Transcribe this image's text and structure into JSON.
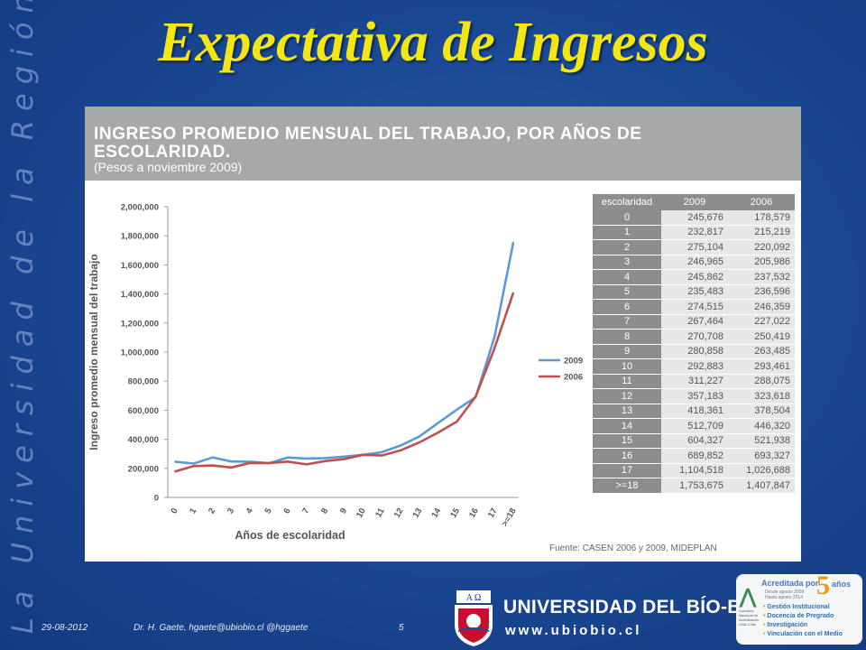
{
  "side_text": "La Universidad de la Región del Bío-Bío",
  "title": "Expectativa de Ingresos",
  "panel": {
    "heading_line1": "INGRESO PROMEDIO MENSUAL DEL TRABAJO, POR AÑOS DE",
    "heading_line2": "ESCOLARIDAD.",
    "subheading": "(Pesos a noviembre 2009)"
  },
  "chart_data": {
    "type": "line",
    "title": "INGRESO PROMEDIO MENSUAL DEL TRABAJO, POR AÑOS DE ESCOLARIDAD.",
    "subtitle": "(Pesos a noviembre 2009)",
    "xlabel": "Años de escolaridad",
    "ylabel": "Ingreso promedio mensual del trabajo",
    "categories": [
      "0",
      "1",
      "2",
      "3",
      "4",
      "5",
      "6",
      "7",
      "8",
      "9",
      "10",
      "11",
      "12",
      "13",
      "14",
      "15",
      "16",
      "17",
      ">=18"
    ],
    "ylim": [
      0,
      2000000
    ],
    "yticks": [
      "0",
      "200,000",
      "400,000",
      "600,000",
      "800,000",
      "1,000,000",
      "1,200,000",
      "1,400,000",
      "1,600,000",
      "1,800,000",
      "2,000,000"
    ],
    "grid": false,
    "legend_position": "right",
    "series": [
      {
        "name": "2009",
        "color": "#5b9bd5",
        "values": [
          245676,
          232817,
          275104,
          246965,
          245862,
          235483,
          274515,
          267464,
          270708,
          280858,
          292883,
          311227,
          357183,
          418361,
          512709,
          604327,
          689852,
          1104518,
          1753675
        ]
      },
      {
        "name": "2006",
        "color": "#c0504d",
        "values": [
          178579,
          215219,
          220092,
          205986,
          237532,
          236596,
          246359,
          227022,
          250419,
          263485,
          293461,
          288075,
          323618,
          378504,
          446320,
          521938,
          693327,
          1026688,
          1407847
        ]
      }
    ],
    "table": {
      "headers": [
        "escolaridad",
        "2009",
        "2006"
      ],
      "rows": [
        [
          "0",
          "245,676",
          "178,579"
        ],
        [
          "1",
          "232,817",
          "215,219"
        ],
        [
          "2",
          "275,104",
          "220,092"
        ],
        [
          "3",
          "246,965",
          "205,986"
        ],
        [
          "4",
          "245,862",
          "237,532"
        ],
        [
          "5",
          "235,483",
          "236,596"
        ],
        [
          "6",
          "274,515",
          "246,359"
        ],
        [
          "7",
          "267,464",
          "227,022"
        ],
        [
          "8",
          "270,708",
          "250,419"
        ],
        [
          "9",
          "280,858",
          "263,485"
        ],
        [
          "10",
          "292,883",
          "293,461"
        ],
        [
          "11",
          "311,227",
          "288,075"
        ],
        [
          "12",
          "357,183",
          "323,618"
        ],
        [
          "13",
          "418,361",
          "378,504"
        ],
        [
          "14",
          "512,709",
          "446,320"
        ],
        [
          "15",
          "604,327",
          "521,938"
        ],
        [
          "16",
          "689,852",
          "693,327"
        ],
        [
          "17",
          "1,104,518",
          "1,026,688"
        ],
        [
          ">=18",
          "1,753,675",
          "1,407,847"
        ]
      ]
    },
    "source": "Fuente: CASEN 2006 y 2009, MIDEPLAN"
  },
  "footer": {
    "date": "29-08-2012",
    "author": "Dr. H. Gaete,   hgaete@ubiobio.cl   @hggaete",
    "page": "5"
  },
  "logo": {
    "name": "UNIVERSIDAD DEL BÍO-BÍO",
    "url": "www.ubiobio.cl",
    "emblem_letters": "A Ω"
  },
  "accreditation": {
    "title": "Acreditada por",
    "number": "5",
    "unit": "años",
    "dates": [
      "Desde agosto 2009",
      "Hasta agosto 2014"
    ],
    "agency": "Comisión Nacional de Acreditación CNA-Chile",
    "items": [
      "Gestión Institucional",
      "Docencia de Pregrado",
      "Investigación",
      "Vinculación con el Medio"
    ]
  }
}
